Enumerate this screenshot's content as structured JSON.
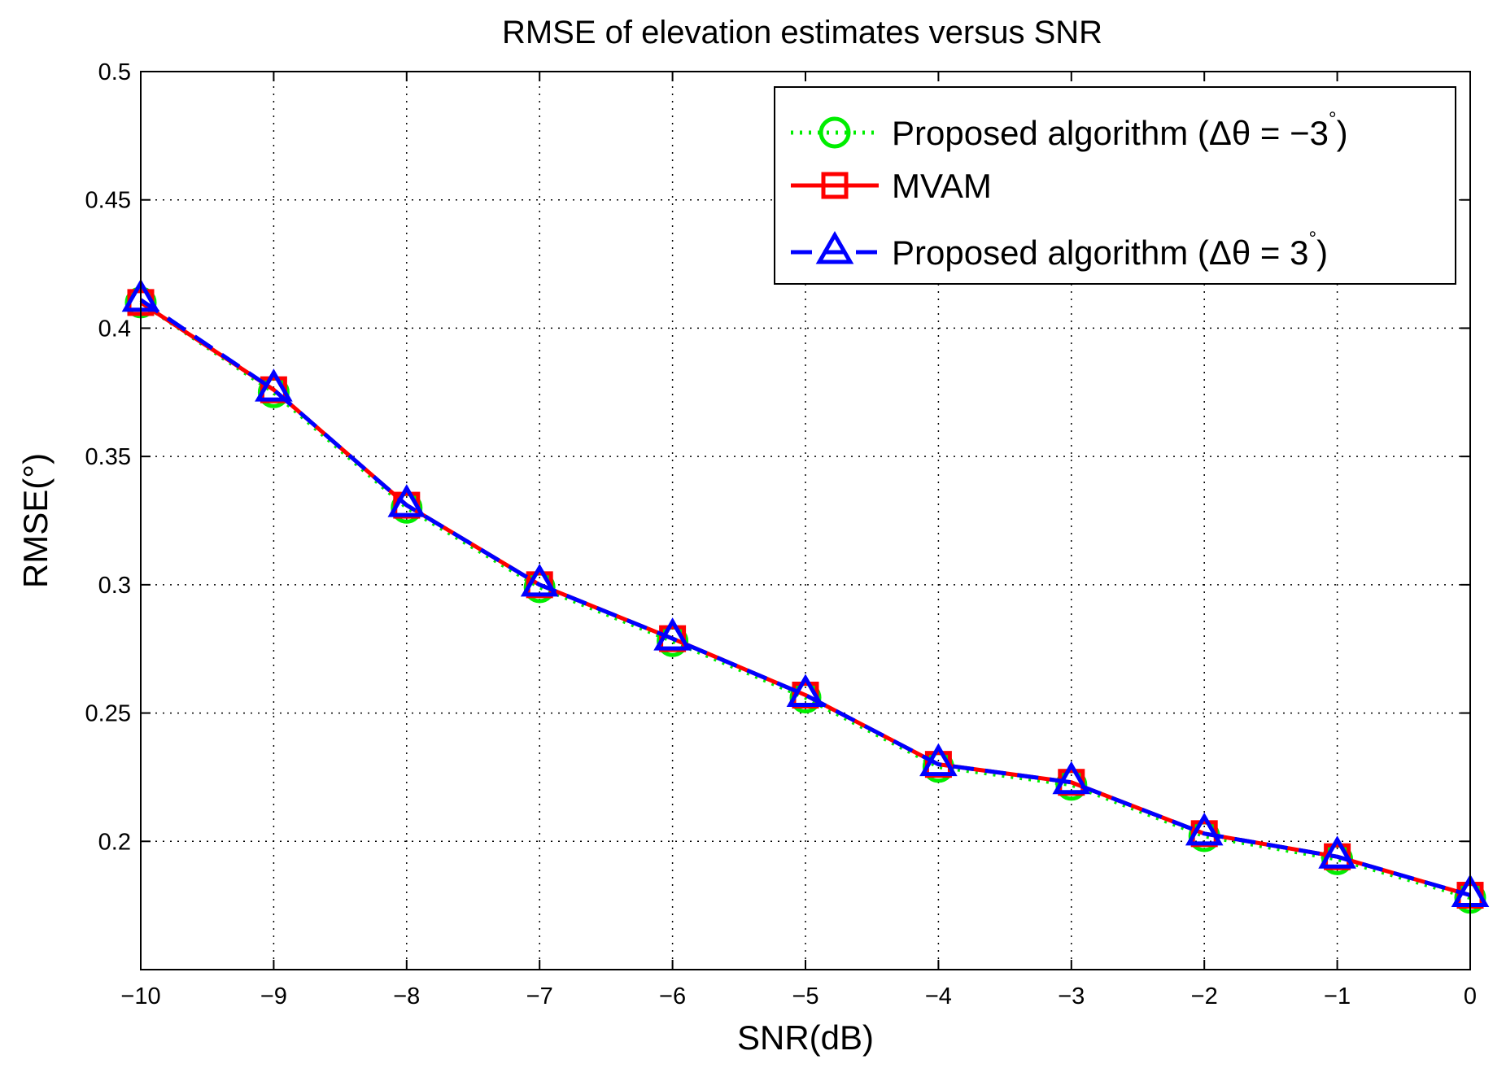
{
  "chart_data": {
    "type": "line",
    "title": "RMSE of elevation estimates versus SNR",
    "xlabel": "SNR(dB)",
    "ylabel": "RMSE(°)",
    "xlim": [
      -10,
      0
    ],
    "ylim": [
      0.15,
      0.5
    ],
    "grid": true,
    "legend_position": "top-right",
    "x": [
      -10,
      -9,
      -8,
      -7,
      -6,
      -5,
      -4,
      -3,
      -2,
      -1,
      0
    ],
    "x_tick_labels": [
      "−10",
      "−9",
      "−8",
      "−7",
      "−6",
      "−5",
      "−4",
      "−3",
      "−2",
      "−1",
      "0"
    ],
    "y_ticks": [
      0.2,
      0.25,
      0.3,
      0.35,
      0.4,
      0.45,
      0.5
    ],
    "y_tick_labels": [
      "0.2",
      "0.25",
      "0.3",
      "0.35",
      "0.4",
      "0.45",
      "0.5"
    ],
    "series": [
      {
        "name": "Proposed algorithm (Δθ = −3°)",
        "legend_text": "Proposed algorithm (Δθ = −3",
        "legend_sup": "°",
        "legend_close": ")",
        "color": "#00ee00",
        "line": "dotted",
        "marker": "circle",
        "values": [
          0.41,
          0.375,
          0.33,
          0.299,
          0.278,
          0.256,
          0.229,
          0.222,
          0.202,
          0.193,
          0.178
        ]
      },
      {
        "name": "MVAM",
        "legend_text": "MVAM",
        "legend_sup": "",
        "legend_close": "",
        "color": "#ff0000",
        "line": "solid",
        "marker": "square",
        "values": [
          0.41,
          0.376,
          0.331,
          0.3,
          0.279,
          0.257,
          0.23,
          0.223,
          0.203,
          0.194,
          0.179
        ]
      },
      {
        "name": "Proposed algorithm (Δθ = 3°)",
        "legend_text": "Proposed algorithm (Δθ = 3",
        "legend_sup": "°",
        "legend_close": ")",
        "color": "#0000ff",
        "line": "dashed",
        "marker": "triangle",
        "values": [
          0.411,
          0.376,
          0.331,
          0.3,
          0.279,
          0.257,
          0.23,
          0.223,
          0.203,
          0.194,
          0.179
        ]
      }
    ]
  }
}
